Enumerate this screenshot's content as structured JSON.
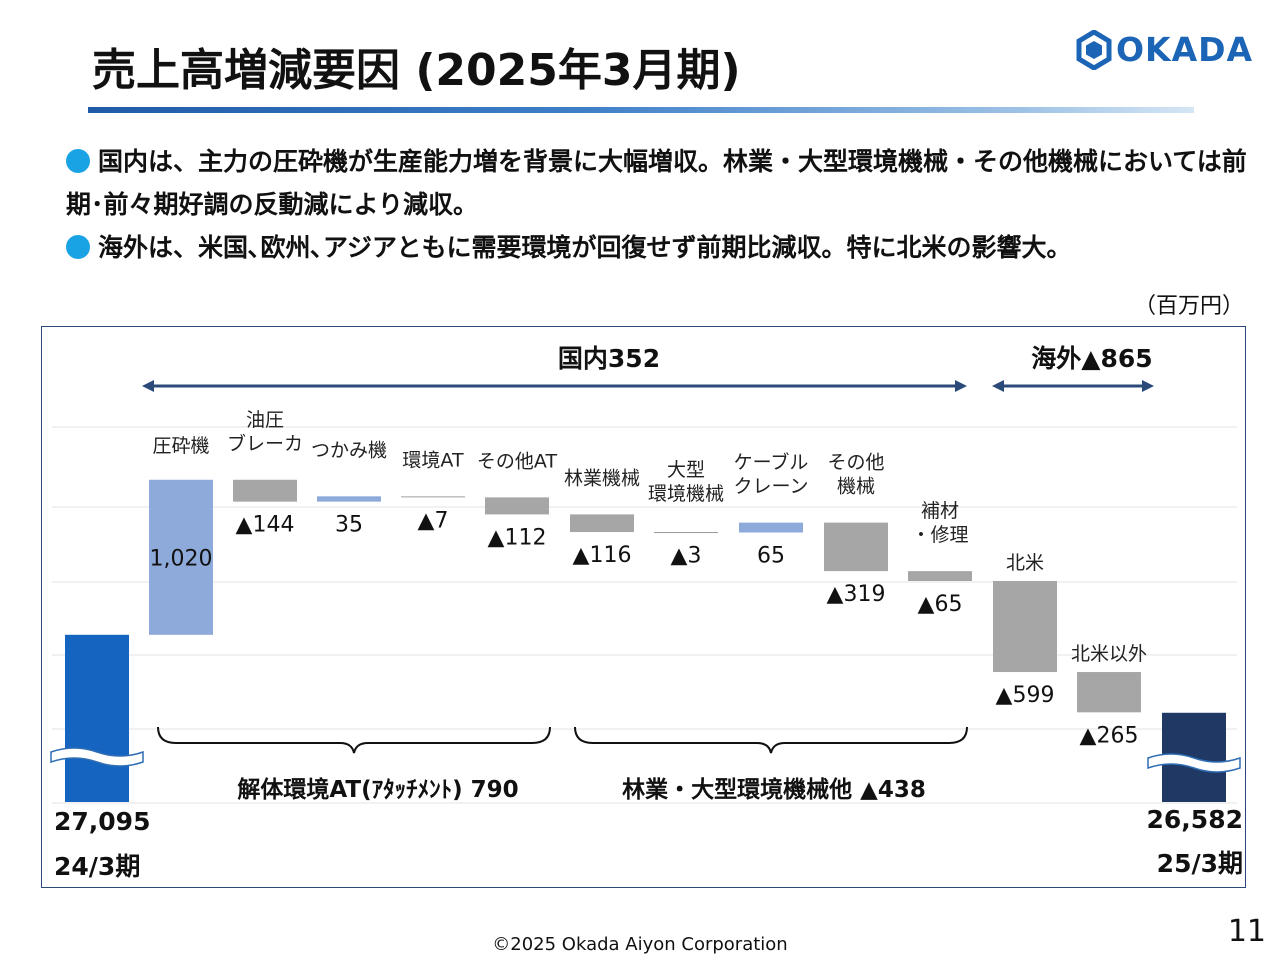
{
  "slide": {
    "title": "売上高増減要因 (2025年3月期)",
    "logo_text": "OKADA",
    "bullets": [
      "国内は、主力の圧砕機が生産能力増を背景に大幅増収。林業・大型環境機械・その他機械においては前期･前々期好調の反動減により減収。",
      "海外は、米国､欧州､アジアともに需要環境が回復せず前期比減収。特に北米の影響大。"
    ],
    "unit": "（百万円）",
    "footer": "©2025 Okada Aiyon Corporation",
    "page_number": "11"
  },
  "chart_data": {
    "type": "waterfall",
    "start": {
      "label": "24/3期",
      "value": 27095,
      "value_label": "27,095",
      "color": "#1565c0"
    },
    "end": {
      "label": "25/3期",
      "value": 26582,
      "value_label": "26,582",
      "color": "#1f3864"
    },
    "steps": [
      {
        "label": "圧砕機",
        "value": 1020,
        "value_label": "1,020",
        "color": "#8eaadb"
      },
      {
        "label": "油圧\nブレーカ",
        "value": -144,
        "value_label": "▲144",
        "color": "#a6a6a6"
      },
      {
        "label": "つかみ機",
        "value": 35,
        "value_label": "35",
        "color": "#8eaadb"
      },
      {
        "label": "環境AT",
        "value": -7,
        "value_label": "▲7",
        "color": "#a6a6a6"
      },
      {
        "label": "その他AT",
        "value": -112,
        "value_label": "▲112",
        "color": "#a6a6a6"
      },
      {
        "label": "林業機械",
        "value": -116,
        "value_label": "▲116",
        "color": "#a6a6a6"
      },
      {
        "label": "大型\n環境機械",
        "value": -3,
        "value_label": "▲3",
        "color": "#a6a6a6"
      },
      {
        "label": "ケーブル\nクレーン",
        "value": 65,
        "value_label": "65",
        "color": "#8eaadb"
      },
      {
        "label": "その他\n機械",
        "value": -319,
        "value_label": "▲319",
        "color": "#a6a6a6"
      },
      {
        "label": "補材\n・修理",
        "value": -65,
        "value_label": "▲65",
        "color": "#a6a6a6"
      },
      {
        "label": "北米",
        "value": -599,
        "value_label": "▲599",
        "color": "#a6a6a6"
      },
      {
        "label": "北米以外",
        "value": -265,
        "value_label": "▲265",
        "color": "#a6a6a6"
      }
    ],
    "group_arrows": [
      {
        "label": "国内352"
      },
      {
        "label": "海外▲865"
      }
    ],
    "braces": [
      {
        "label": "解体環境AT(ｱﾀｯﾁﾒﾝﾄ) 790"
      },
      {
        "label": "林業・大型環境機械他 ▲438"
      }
    ],
    "axis_break": true,
    "gridlines": true
  }
}
